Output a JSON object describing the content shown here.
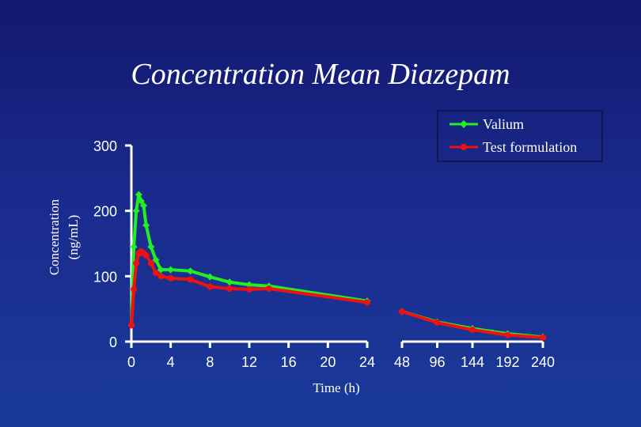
{
  "chart_data": {
    "type": "line",
    "title": "Concentration Mean Diazepam",
    "xlabel": "Time (h)",
    "ylabel": [
      "Concentration",
      "(ng/mL)"
    ],
    "ylim": [
      0,
      300
    ],
    "yticks": [
      "0",
      "100",
      "200",
      "300"
    ],
    "xticks_linear": [
      "0",
      "4",
      "8",
      "12",
      "16",
      "20",
      "24"
    ],
    "xticks_extended": [
      "48",
      "96",
      "144",
      "192",
      "240"
    ],
    "legend_position": "top-right",
    "colors": {
      "Valium": "#22ee22",
      "Test formulation": "#ee1111"
    },
    "series": [
      {
        "name": "Valium",
        "x": [
          0,
          0.25,
          0.5,
          0.75,
          1,
          1.25,
          1.5,
          2,
          2.5,
          3,
          4,
          6,
          8,
          10,
          12,
          14,
          24
        ],
        "y": [
          25,
          145,
          200,
          225,
          215,
          208,
          178,
          145,
          125,
          110,
          110,
          108,
          99,
          91,
          87,
          85,
          62
        ],
        "x_ext": [
          24,
          48,
          96,
          144,
          192,
          240
        ],
        "y_ext": [
          62,
          46,
          30,
          20,
          12,
          7
        ]
      },
      {
        "name": "Test formulation",
        "x": [
          0,
          0.25,
          0.5,
          0.75,
          1,
          1.25,
          1.5,
          2,
          2.5,
          3,
          4,
          6,
          8,
          10,
          12,
          14,
          24
        ],
        "y": [
          25,
          80,
          120,
          135,
          138,
          135,
          132,
          120,
          105,
          100,
          97,
          95,
          84,
          81,
          80,
          81,
          60
        ],
        "x_ext": [
          24,
          48,
          96,
          144,
          192,
          240
        ],
        "y_ext": [
          60,
          46,
          29,
          18,
          10,
          6
        ]
      }
    ]
  }
}
